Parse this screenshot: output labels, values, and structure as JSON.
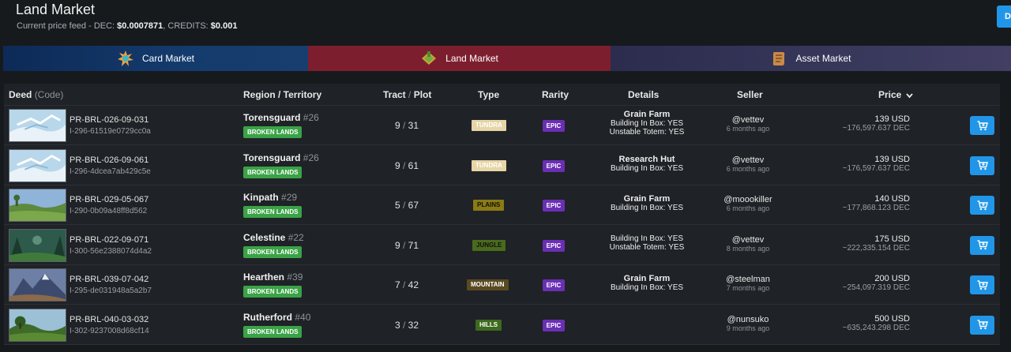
{
  "header": {
    "title": "Land Market",
    "feed_prefix": "Current price feed - DEC: ",
    "dec_price": "$0.0007871",
    "credits_label": ", CREDITS: ",
    "credits_price": "$0.001",
    "corner_button": "D"
  },
  "market_tabs": [
    {
      "label": "Card Market",
      "icon": "card-market-icon"
    },
    {
      "label": "Land Market",
      "icon": "land-market-icon"
    },
    {
      "label": "Asset Market",
      "icon": "asset-market-icon"
    }
  ],
  "columns": {
    "deed": "Deed",
    "deed_code": "(Code)",
    "region": "Region / Territory",
    "tract": "Tract",
    "tract_sep": " / ",
    "plot": "Plot",
    "type": "Type",
    "rarity": "Rarity",
    "details": "Details",
    "seller": "Seller",
    "price": "Price",
    "sort_icon": "chevron-down-icon"
  },
  "rows": [
    {
      "deed": "PR-BRL-026-09-031",
      "code": "I-296-61519e0729cc0a",
      "region": "Torensguard",
      "region_num": "#26",
      "territory": "BROKEN LANDS",
      "tract": "9",
      "plot": "31",
      "type": "TUNDRA",
      "rarity": "EPIC",
      "details_main": "Grain Farm",
      "details_lines": [
        "Building In Box: YES",
        "Unstable Totem: YES"
      ],
      "seller": "@vettev",
      "time": "6 months ago",
      "usd": "139 USD",
      "dec": "~176,597.637 DEC",
      "thumb": "tundra"
    },
    {
      "deed": "PR-BRL-026-09-061",
      "code": "I-296-4dcea7ab429c5e",
      "region": "Torensguard",
      "region_num": "#26",
      "territory": "BROKEN LANDS",
      "tract": "9",
      "plot": "61",
      "type": "TUNDRA",
      "rarity": "EPIC",
      "details_main": "Research Hut",
      "details_lines": [
        "Building In Box: YES"
      ],
      "seller": "@vettev",
      "time": "6 months ago",
      "usd": "139 USD",
      "dec": "~176,597.637 DEC",
      "thumb": "tundra"
    },
    {
      "deed": "PR-BRL-029-05-067",
      "code": "I-290-0b09a48ff8d562",
      "region": "Kinpath",
      "region_num": "#29",
      "territory": "BROKEN LANDS",
      "tract": "5",
      "plot": "67",
      "type": "PLAINS",
      "rarity": "EPIC",
      "details_main": "Grain Farm",
      "details_lines": [
        "Building In Box: YES"
      ],
      "seller": "@moookiller",
      "time": "6 months ago",
      "usd": "140 USD",
      "dec": "~177,868.123 DEC",
      "thumb": "plains"
    },
    {
      "deed": "PR-BRL-022-09-071",
      "code": "I-300-56e2388074d4a2",
      "region": "Celestine",
      "region_num": "#22",
      "territory": "BROKEN LANDS",
      "tract": "9",
      "plot": "71",
      "type": "JUNGLE",
      "rarity": "EPIC",
      "details_main": "",
      "details_lines": [
        "Building In Box: YES",
        "Unstable Totem: YES"
      ],
      "seller": "@vettev",
      "time": "8 months ago",
      "usd": "175 USD",
      "dec": "~222,335.154 DEC",
      "thumb": "jungle"
    },
    {
      "deed": "PR-BRL-039-07-042",
      "code": "I-295-de031948a5a2b7",
      "region": "Hearthen",
      "region_num": "#39",
      "territory": "BROKEN LANDS",
      "tract": "7",
      "plot": "42",
      "type": "MOUNTAIN",
      "rarity": "EPIC",
      "details_main": "Grain Farm",
      "details_lines": [
        "Building In Box: YES"
      ],
      "seller": "@steelman",
      "time": "7 months ago",
      "usd": "200 USD",
      "dec": "~254,097.319 DEC",
      "thumb": "mountain"
    },
    {
      "deed": "PR-BRL-040-03-032",
      "code": "I-302-9237008d68cf14",
      "region": "Rutherford",
      "region_num": "#40",
      "territory": "BROKEN LANDS",
      "tract": "3",
      "plot": "32",
      "type": "HILLS",
      "rarity": "EPIC",
      "details_main": "",
      "details_lines": [],
      "seller": "@nunsuko",
      "time": "9 months ago",
      "usd": "500 USD",
      "dec": "~635,243.298 DEC",
      "thumb": "hills"
    }
  ],
  "type_colors": {
    "TUNDRA": {
      "bg": "#e6d5a6",
      "fg": "#ffffff"
    },
    "PLAINS": {
      "bg": "#8a7b14",
      "fg": "#111111"
    },
    "JUNGLE": {
      "bg": "#4a6a1c",
      "fg": "#111111"
    },
    "MOUNTAIN": {
      "bg": "#5a4a22",
      "fg": "#ffffff"
    },
    "HILLS": {
      "bg": "#3d6a1e",
      "fg": "#ffffff"
    }
  },
  "buy_icon": "add-to-cart-icon"
}
